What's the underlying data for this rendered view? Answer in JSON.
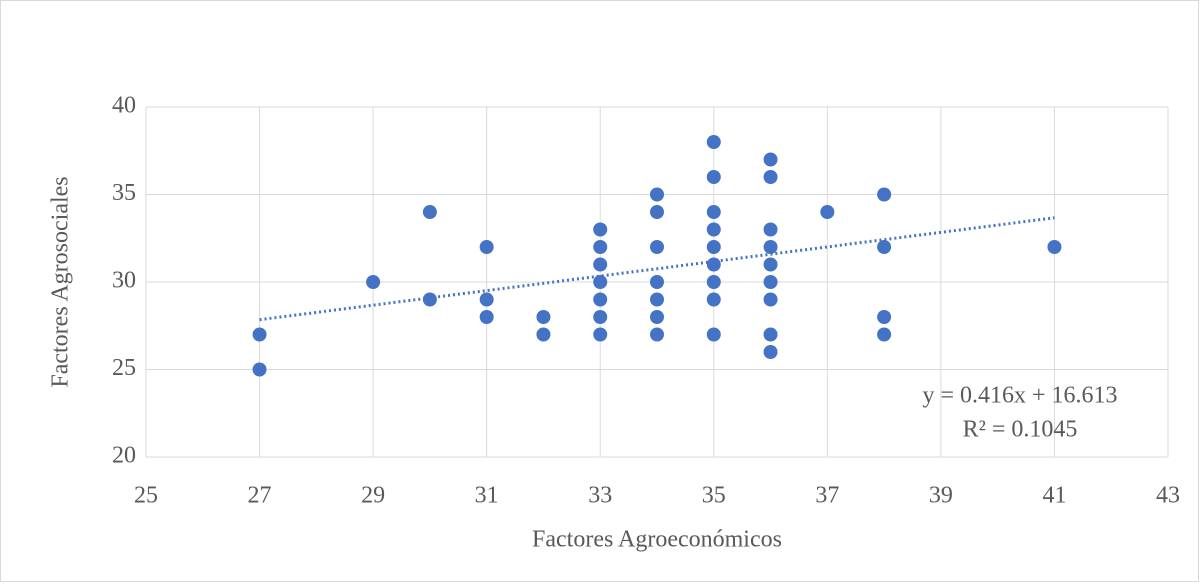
{
  "chart_data": {
    "type": "scatter",
    "x_label": "Factores Agroeconómicos",
    "y_label": "Factores Agrosociales",
    "series": [
      {
        "name": "Factores Agrosociales",
        "color": "#4472c4",
        "x": [
          27,
          27,
          29,
          30,
          30,
          31,
          31,
          31,
          32,
          32,
          33,
          33,
          33,
          33,
          33,
          33,
          33,
          34,
          34,
          34,
          34,
          34,
          34,
          34,
          35,
          35,
          35,
          35,
          35,
          35,
          35,
          35,
          35,
          36,
          36,
          36,
          36,
          36,
          36,
          36,
          36,
          36,
          37,
          38,
          38,
          38,
          38,
          41
        ],
        "values": [
          27,
          25,
          30,
          34,
          29,
          32,
          29,
          28,
          28,
          27,
          33,
          32,
          31,
          30,
          29,
          28,
          27,
          35,
          34,
          32,
          30,
          29,
          28,
          27,
          38,
          36,
          34,
          33,
          32,
          31,
          30,
          29,
          27,
          37,
          36,
          33,
          32,
          31,
          30,
          29,
          27,
          26,
          34,
          35,
          32,
          28,
          27,
          32
        ]
      }
    ],
    "trendline": {
      "slope": 0.416,
      "intercept": 16.613,
      "color": "#4472c4",
      "equation": "y = 0.416x + 16.613",
      "r2": "R² = 0.1045"
    },
    "xlim": [
      25,
      43
    ],
    "xticks": [
      25,
      27,
      29,
      31,
      33,
      35,
      37,
      39,
      41,
      43
    ],
    "ylim": [
      20,
      40
    ],
    "yticks": [
      20,
      25,
      30,
      35,
      40
    ],
    "grid": true
  }
}
